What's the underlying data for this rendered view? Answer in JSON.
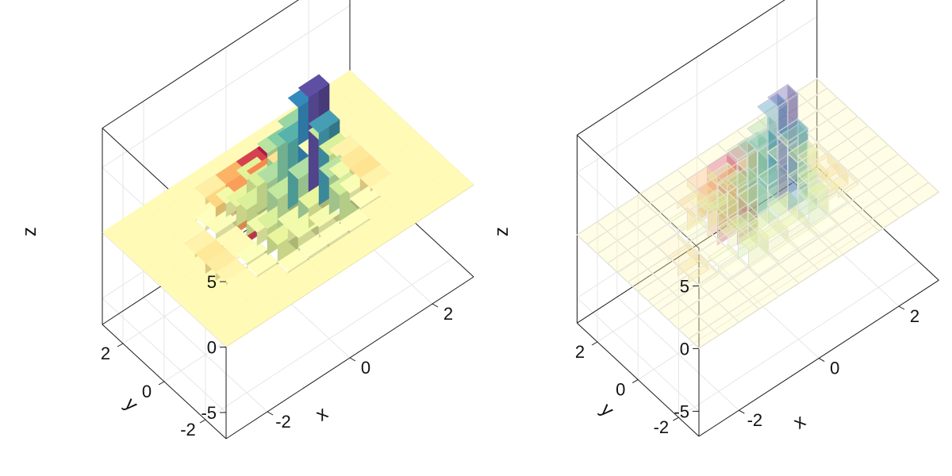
{
  "chart_data": [
    {
      "type": "bar3d",
      "style": "solid",
      "xlabel": "x",
      "ylabel": "y",
      "zlabel": "z",
      "x_ticks": [
        "-2",
        "0",
        "2"
      ],
      "y_ticks": [
        "-2",
        "0",
        "2"
      ],
      "z_ticks": [
        "-5",
        "0",
        "5"
      ],
      "xlim": [
        -3,
        3
      ],
      "ylim": [
        -3,
        3
      ],
      "zlim": [
        -7,
        8
      ],
      "colormap": "Spectral",
      "grid": true
    },
    {
      "type": "bar3d",
      "style": "transparent-outlined",
      "xlabel": "x",
      "ylabel": "y",
      "zlabel": "z",
      "x_ticks": [
        "-2",
        "0",
        "2"
      ],
      "y_ticks": [
        "-2",
        "0",
        "2"
      ],
      "z_ticks": [
        "-5",
        "0",
        "5"
      ],
      "xlim": [
        -3,
        3
      ],
      "ylim": [
        -3,
        3
      ],
      "zlim": [
        -7,
        8
      ],
      "colormap": "Spectral",
      "grid": true
    }
  ],
  "data_grid": {
    "x": [
      -2.75,
      -2.25,
      -1.75,
      -1.25,
      -0.75,
      -0.25,
      0.25,
      0.75,
      1.25,
      1.75,
      2.25,
      2.75
    ],
    "y": [
      -2.75,
      -2.25,
      -1.75,
      -1.25,
      -0.75,
      -0.25,
      0.25,
      0.75,
      1.25,
      1.75,
      2.25,
      2.75
    ],
    "z": [
      [
        0,
        0,
        0,
        0,
        0,
        0,
        0,
        0,
        0,
        0,
        0,
        0
      ],
      [
        0,
        0,
        0,
        0,
        0,
        0,
        0,
        0,
        0,
        0,
        0,
        0
      ],
      [
        0,
        0,
        0,
        0,
        0.2,
        0.3,
        0.3,
        0.2,
        0,
        0,
        0,
        0
      ],
      [
        0,
        0,
        0,
        0.2,
        1.5,
        1.0,
        0.8,
        2.2,
        0.2,
        0,
        0,
        0
      ],
      [
        0,
        0,
        -0.2,
        0.4,
        2.0,
        1.0,
        1.5,
        2.8,
        0.6,
        -0.3,
        0,
        0
      ],
      [
        0,
        0,
        -0.6,
        0,
        1.0,
        2.5,
        3.0,
        5.5,
        1.0,
        -1.0,
        0,
        0
      ],
      [
        0,
        0,
        -0.8,
        0,
        2.0,
        3.0,
        5.0,
        7.5,
        2.0,
        -0.8,
        0,
        0
      ],
      [
        0,
        0,
        -0.3,
        0.5,
        1.5,
        2.0,
        4.0,
        6.0,
        2.5,
        -0.3,
        0,
        0
      ],
      [
        0,
        0,
        0,
        0.3,
        1.0,
        1.8,
        2.8,
        3.5,
        0.6,
        0,
        0,
        0
      ],
      [
        0,
        0,
        0,
        0,
        -1.5,
        -3.0,
        -3.5,
        -1.0,
        0,
        0,
        0,
        0
      ],
      [
        0,
        0,
        0,
        0,
        -0.5,
        -2.5,
        -5.5,
        -6.5,
        -0.5,
        0,
        0,
        0
      ],
      [
        0,
        0,
        0,
        0,
        0,
        0,
        0,
        0,
        0,
        0,
        0,
        0
      ]
    ]
  },
  "colors": {
    "background": "#ffffff",
    "axis": "#1a1a1a",
    "grid": "#e6e6e6"
  }
}
